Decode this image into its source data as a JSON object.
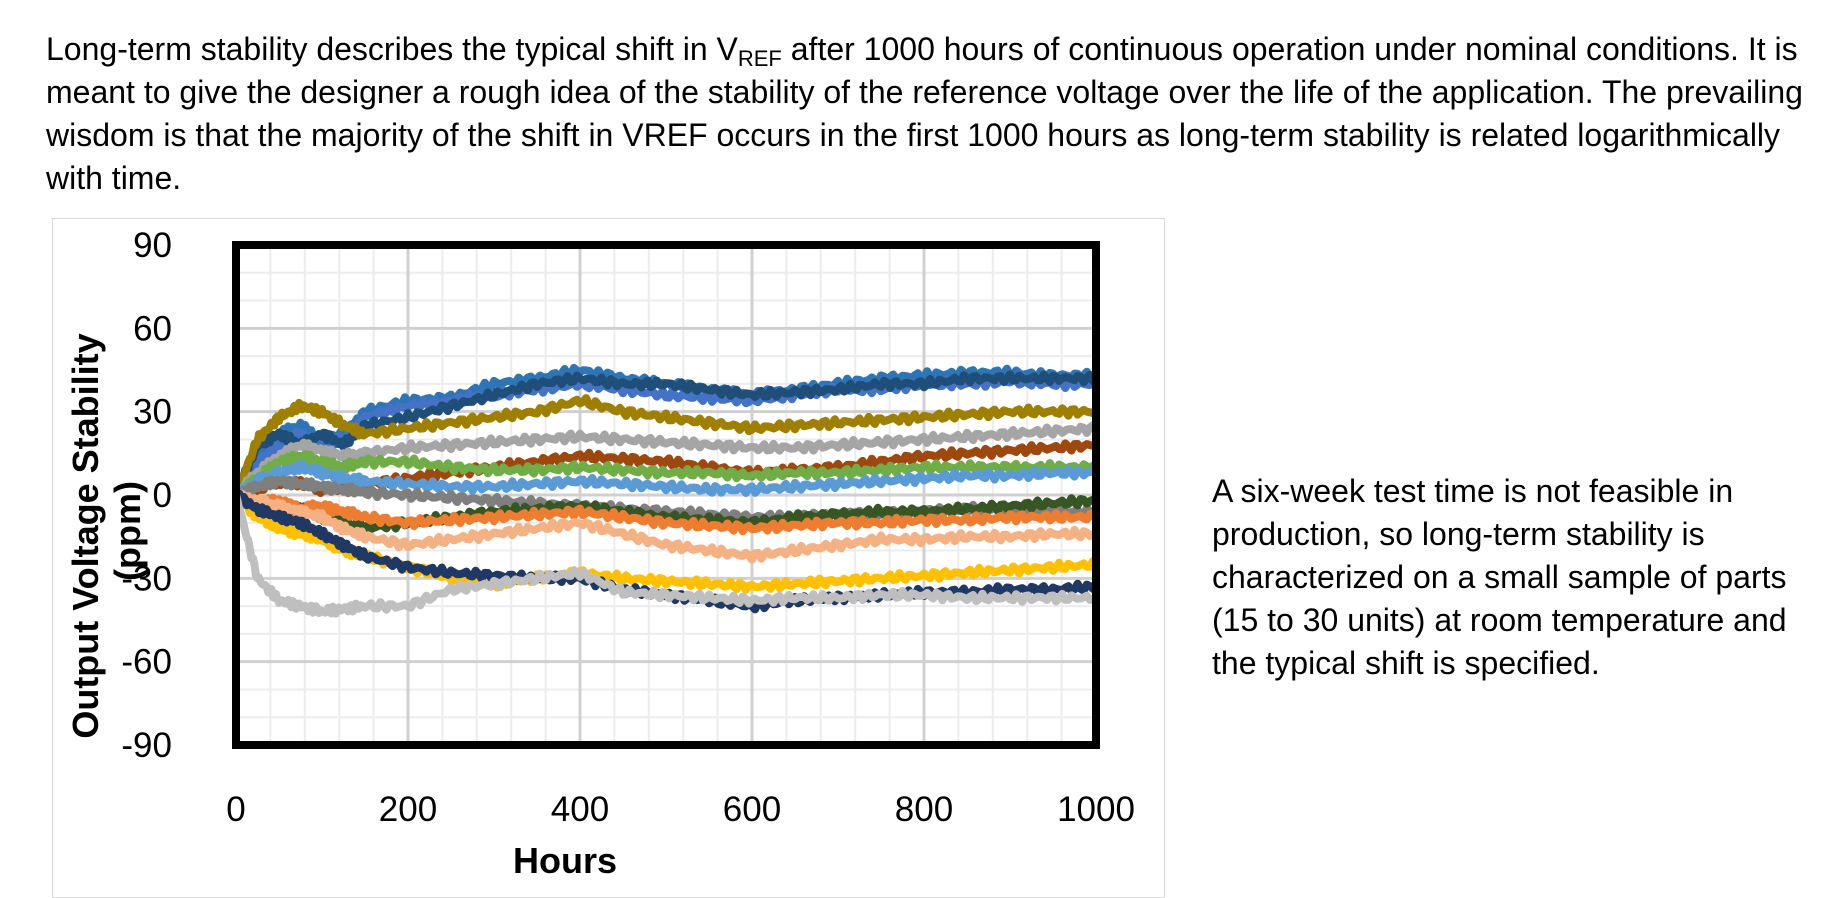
{
  "intro": {
    "before": "Long-term stability describes the typical shift in V",
    "subscript": "REF",
    "after": " after 1000 hours of continuous operation under nominal conditions. It is meant to give the designer a rough idea of the stability of the reference voltage over the life of the application. The prevailing wisdom is that the majority of the shift in VREF occurs in the first 1000 hours as long-term stability is related logarithmically with time."
  },
  "note": "A six-week test time is not feasible in production, so long-term stability is characterized on a small sample of parts (15 to 30 units) at room temperature and the typical shift is specified.",
  "chart_data": {
    "type": "line",
    "title": "",
    "xlabel": "Hours",
    "ylabel_line1": "Output Voltage Stability",
    "ylabel_line2": "(ppm)",
    "xlim": [
      0,
      1000
    ],
    "ylim": [
      -90,
      90
    ],
    "x_ticks": [
      "0",
      "200",
      "400",
      "600",
      "800",
      "1000"
    ],
    "y_ticks": [
      "90",
      "60",
      "30",
      "0",
      "-30",
      "-60",
      "-90"
    ],
    "grid": true,
    "legend": "none",
    "x": [
      0,
      25,
      50,
      75,
      100,
      125,
      150,
      200,
      250,
      300,
      350,
      400,
      450,
      500,
      550,
      600,
      650,
      700,
      750,
      800,
      850,
      900,
      950,
      1000
    ],
    "series": [
      {
        "color": "#2E75B6",
        "values": [
          0,
          15,
          22,
          25,
          20,
          22,
          30,
          34,
          35,
          40,
          42,
          45,
          42,
          40,
          38,
          36,
          38,
          40,
          42,
          43,
          44,
          44,
          43,
          43
        ]
      },
      {
        "color": "#4472C4",
        "values": [
          0,
          12,
          18,
          22,
          18,
          20,
          28,
          32,
          34,
          36,
          38,
          40,
          38,
          36,
          35,
          34,
          36,
          38,
          38,
          40,
          40,
          41,
          40,
          40
        ]
      },
      {
        "color": "#1F4E79",
        "values": [
          0,
          18,
          22,
          18,
          22,
          18,
          25,
          28,
          32,
          36,
          40,
          42,
          40,
          40,
          38,
          36,
          37,
          38,
          40,
          40,
          42,
          42,
          42,
          42
        ]
      },
      {
        "color": "#9E7F00",
        "values": [
          0,
          20,
          28,
          32,
          30,
          25,
          22,
          24,
          26,
          28,
          30,
          34,
          30,
          28,
          26,
          24,
          25,
          26,
          27,
          28,
          29,
          30,
          30,
          30
        ]
      },
      {
        "color": "#A5A5A5",
        "values": [
          0,
          8,
          14,
          18,
          16,
          14,
          15,
          17,
          18,
          19,
          20,
          21,
          20,
          19,
          18,
          17,
          17,
          18,
          19,
          20,
          21,
          22,
          23,
          24
        ]
      },
      {
        "color": "#9E480E",
        "values": [
          0,
          2,
          5,
          4,
          2,
          3,
          4,
          6,
          8,
          10,
          12,
          14,
          13,
          12,
          10,
          8,
          9,
          10,
          12,
          14,
          15,
          16,
          17,
          18
        ]
      },
      {
        "color": "#70AD47",
        "values": [
          0,
          6,
          12,
          14,
          12,
          10,
          12,
          12,
          10,
          9,
          9,
          10,
          9,
          8,
          8,
          7,
          8,
          8,
          9,
          10,
          10,
          10,
          10,
          10
        ]
      },
      {
        "color": "#5B9BD5",
        "values": [
          0,
          5,
          8,
          10,
          8,
          6,
          5,
          4,
          3,
          3,
          4,
          5,
          4,
          3,
          2,
          2,
          3,
          4,
          5,
          6,
          7,
          7,
          8,
          8
        ]
      },
      {
        "color": "#7F7F7F",
        "values": [
          0,
          3,
          5,
          4,
          3,
          2,
          1,
          0,
          -1,
          -2,
          -3,
          -4,
          -5,
          -6,
          -7,
          -8,
          -8,
          -7,
          -7,
          -6,
          -5,
          -5,
          -6,
          -6
        ]
      },
      {
        "color": "#375623",
        "values": [
          0,
          -4,
          -6,
          -5,
          -8,
          -10,
          -12,
          -10,
          -8,
          -6,
          -5,
          -4,
          -6,
          -8,
          -9,
          -10,
          -8,
          -7,
          -6,
          -6,
          -5,
          -4,
          -3,
          -2
        ]
      },
      {
        "color": "#ED7D31",
        "values": [
          0,
          -3,
          -2,
          -5,
          -4,
          -6,
          -8,
          -10,
          -9,
          -8,
          -7,
          -6,
          -8,
          -10,
          -11,
          -12,
          -11,
          -10,
          -10,
          -9,
          -9,
          -8,
          -8,
          -8
        ]
      },
      {
        "color": "#F4B183",
        "values": [
          0,
          -2,
          -4,
          -6,
          -8,
          -12,
          -15,
          -18,
          -16,
          -14,
          -12,
          -10,
          -14,
          -18,
          -20,
          -22,
          -20,
          -18,
          -16,
          -16,
          -15,
          -15,
          -14,
          -14
        ]
      },
      {
        "color": "#FFC000",
        "values": [
          0,
          -8,
          -12,
          -14,
          -16,
          -20,
          -22,
          -26,
          -30,
          -32,
          -30,
          -28,
          -30,
          -31,
          -32,
          -33,
          -32,
          -31,
          -30,
          -29,
          -28,
          -27,
          -26,
          -25
        ]
      },
      {
        "color": "#203864",
        "values": [
          0,
          -5,
          -8,
          -10,
          -14,
          -18,
          -22,
          -26,
          -28,
          -29,
          -30,
          -30,
          -34,
          -36,
          -38,
          -40,
          -38,
          -37,
          -36,
          -35,
          -35,
          -34,
          -34,
          -33
        ]
      },
      {
        "color": "#BFBFBF",
        "values": [
          0,
          -30,
          -38,
          -40,
          -42,
          -41,
          -40,
          -40,
          -34,
          -32,
          -30,
          -28,
          -35,
          -36,
          -37,
          -38,
          -37,
          -37,
          -36,
          -36,
          -37,
          -37,
          -37,
          -37
        ]
      }
    ]
  }
}
